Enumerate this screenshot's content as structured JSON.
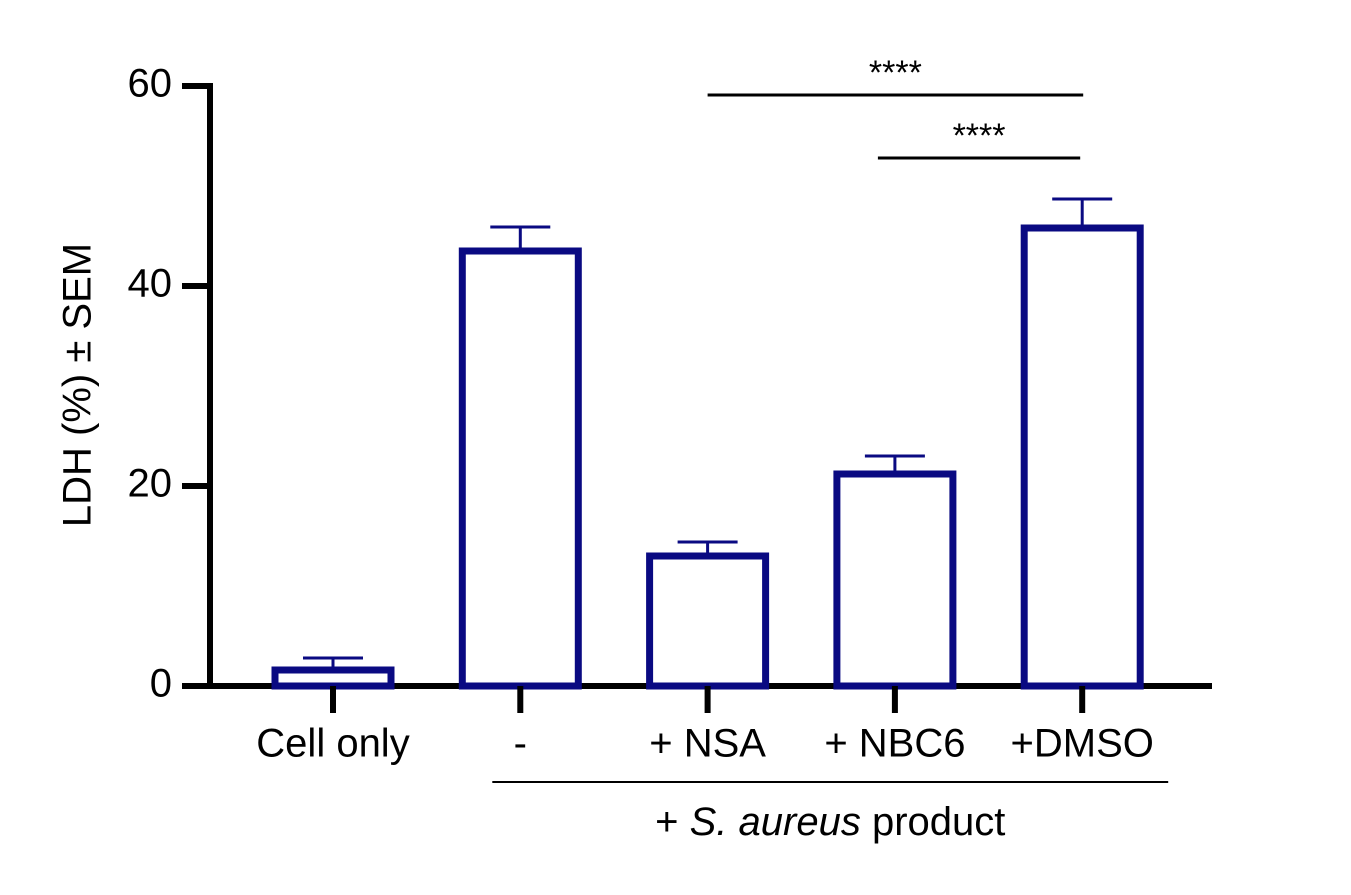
{
  "chart_data": {
    "type": "bar",
    "y_label": "LDH (%) ± SEM",
    "categories": [
      "Cell only",
      "-",
      "+ NSA",
      "+ NBC6",
      "+DMSO"
    ],
    "values": [
      1.6,
      43.5,
      13,
      21.2,
      45.8
    ],
    "errors": [
      1.2,
      2.4,
      1.4,
      1.8,
      2.9
    ],
    "color": "#0a0a82",
    "ylim": [
      0,
      60
    ],
    "yticks": [
      0,
      20,
      40,
      60
    ],
    "group_label": {
      "parts": [
        "+ ",
        "S. aureus",
        " product"
      ],
      "from": 1,
      "to": 4
    },
    "annotations": [
      {
        "text": "****",
        "from": 2,
        "to": 4
      },
      {
        "text": "****",
        "from": 3,
        "to": 4
      }
    ]
  }
}
